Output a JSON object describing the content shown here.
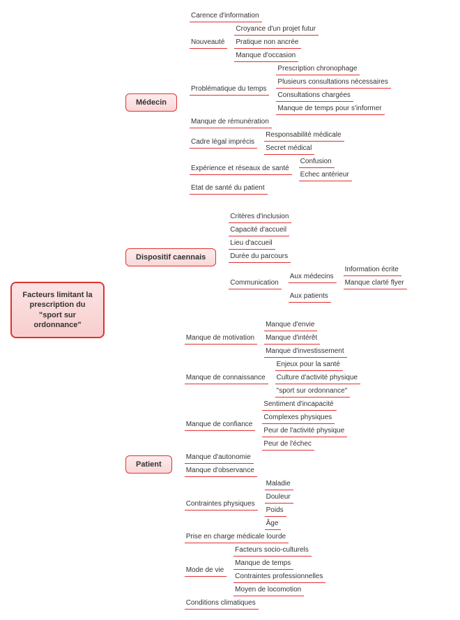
{
  "colors": {
    "border": "#e03030",
    "node_bg_start": "#fdecec",
    "node_bg_end": "#fad7d7",
    "root_bg_start": "#fce4e4",
    "root_bg_end": "#f8cdcd",
    "leaf_underline": "#e03030",
    "connector": "#bbbbbb",
    "text": "#333333",
    "bg": "#ffffff"
  },
  "typography": {
    "root_fontsize": 11,
    "branch_fontsize": 11,
    "leaf_fontsize": 10,
    "font_family": "Arial"
  },
  "root": "Facteurs limitant la prescription du \"sport sur ordonnance\"",
  "branches": [
    {
      "label": "Médecin",
      "children": [
        {
          "label": "Carence d'information"
        },
        {
          "label": "Nouveauté",
          "children": [
            {
              "label": "Croyance d'un projet futur"
            },
            {
              "label": "Pratique non ancrée"
            },
            {
              "label": "Manque d'occasion"
            }
          ]
        },
        {
          "label": "Problématique du temps",
          "children": [
            {
              "label": "Prescription chronophage"
            },
            {
              "label": "Plusieurs consultations nécessaires"
            },
            {
              "label": "Consultations chargées"
            },
            {
              "label": "Manque de temps pour s'informer"
            }
          ]
        },
        {
          "label": "Manque de rémunération"
        },
        {
          "label": "Cadre légal imprécis",
          "children": [
            {
              "label": "Responsabilité médicale"
            },
            {
              "label": "Secret médical"
            }
          ]
        },
        {
          "label": "Expérience et réseaux de santé",
          "children": [
            {
              "label": "Confusion"
            },
            {
              "label": "Echec antérieur"
            }
          ]
        },
        {
          "label": "Etat de santé du patient"
        }
      ]
    },
    {
      "label": "Dispositif caennais",
      "children": [
        {
          "label": "Critères d'inclusion"
        },
        {
          "label": "Capacité d'accueil"
        },
        {
          "label": "Lieu d'accueil"
        },
        {
          "label": "Durée du parcours"
        },
        {
          "label": "Communication",
          "children": [
            {
              "label": "Aux médecins",
              "children": [
                {
                  "label": "Information écrite"
                },
                {
                  "label": "Manque clarté flyer"
                }
              ]
            },
            {
              "label": "Aux patients"
            }
          ]
        }
      ]
    },
    {
      "label": "Patient",
      "children": [
        {
          "label": "Manque de motivation",
          "children": [
            {
              "label": "Manque d'envie"
            },
            {
              "label": "Manque d'intérêt"
            },
            {
              "label": "Manque d'investissement"
            }
          ]
        },
        {
          "label": "Manque de connaissance",
          "children": [
            {
              "label": "Enjeux pour la santé"
            },
            {
              "label": "Culture d'activité physique"
            },
            {
              "label": "\"sport sur ordonnance\""
            }
          ]
        },
        {
          "label": "Manque de confiance",
          "children": [
            {
              "label": "Sentiment d'incapacité"
            },
            {
              "label": "Complexes physiques"
            },
            {
              "label": "Peur de l'activité physique"
            },
            {
              "label": "Peur de l'échec"
            }
          ]
        },
        {
          "label": "Manque d'autonomie"
        },
        {
          "label": "Manque d'observance"
        },
        {
          "label": "Contraintes physiques",
          "children": [
            {
              "label": "Maladie"
            },
            {
              "label": "Douleur"
            },
            {
              "label": "Poids"
            },
            {
              "label": "Âge"
            }
          ]
        },
        {
          "label": "Prise en charge médicale lourde"
        },
        {
          "label": "Mode de vie",
          "children": [
            {
              "label": "Facteurs socio-culturels"
            },
            {
              "label": "Manque de temps"
            },
            {
              "label": "Contraintes professionnelles"
            },
            {
              "label": "Moyen de locomotion"
            }
          ]
        },
        {
          "label": "Conditions climatiques"
        }
      ]
    }
  ]
}
